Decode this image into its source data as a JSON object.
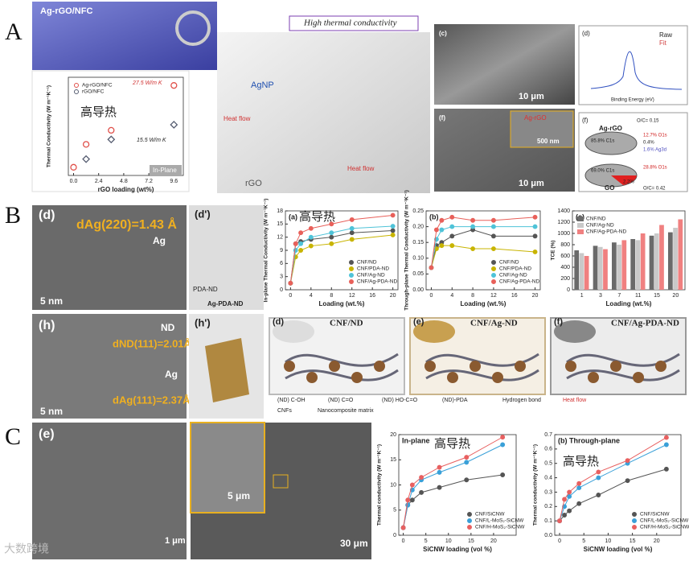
{
  "figure": {
    "panel_labels": [
      "A",
      "B",
      "C"
    ],
    "a": {
      "banner": "Ag-rGO/NFC",
      "high": "High thermal conductivity",
      "agnp": "AgNP",
      "heat1": "Heat flow",
      "heat2": "Heat flow",
      "rgo": "rGO",
      "sem_c": "(c)",
      "sem_c_scale": "10 μm",
      "xps": "(d)",
      "xps_raw": "Raw",
      "xps_fit": "Fit",
      "xps_x": "Binding Energy (eV)",
      "sem_f": "(f)",
      "sem_f_inset": "Ag-rGO",
      "sem_f_inset_scale": "500 nm",
      "sem_f_scale": "10 μm",
      "pie": {
        "label": "(f)",
        "top": "Ag-rGO",
        "top_c": "85.8% C1s",
        "top_o": "12.7% O1s",
        "top_x": "0.4%",
        "top_ag": "1.6% Ag3d",
        "top_ratio": "O/C= 0.15",
        "bottom": "GO",
        "bottom_c": "69.0% C1s",
        "bottom_o": "28.8% O1s",
        "bottom_x": "2.2%",
        "bottom_ratio": "O/C= 0.42"
      }
    },
    "b": {
      "d": "(d)",
      "d_spacing": "dAg(220)=1.43 Å",
      "d_ag": "Ag",
      "d_scale": "5 nm",
      "dp": "(d')",
      "dp_pda": "PDA-ND",
      "dp_name": "Ag-PDA-ND",
      "h": "(h)",
      "h_nd": "ND",
      "h_spacing1": "dND(111)=2.01Å",
      "h_ag": "Ag",
      "h_spacing2": "dAg(111)=2.37Å",
      "h_scale": "5 nm",
      "hp": "(h')",
      "schemes": [
        {
          "label": "(d)",
          "name": "CNF/ND"
        },
        {
          "label": "(e)",
          "name": "CNF/Ag-ND"
        },
        {
          "label": "(f)",
          "name": "CNF/Ag-PDA-ND"
        }
      ],
      "legend": [
        "(ND) C-OH",
        "(ND) C=O",
        "(ND) HO-C=O",
        "(ND)-PDA",
        "Hydrogen bond",
        "Heat flow",
        "CNFs",
        "Nanocomposite matrix"
      ]
    },
    "c": {
      "e": "(e)",
      "e_scale": "1 μm",
      "inset_scale": "5 μm",
      "scale": "30 μm",
      "watermark": "大数跨境"
    }
  },
  "chart_data": [
    {
      "type": "scatter",
      "x_label": "rGO loading (wt%)",
      "y_label": "Thermal Conductivity (W m⁻¹K⁻¹)",
      "x": [
        0,
        1.2,
        3.6,
        9.6
      ],
      "xlim": [
        -0.5,
        10.5
      ],
      "xticks": [
        {
          "value": 0,
          "label": "0.0"
        },
        2.4,
        4.8,
        7.2,
        9.6
      ],
      "ylim": [
        0,
        30
      ],
      "yticks": [],
      "legend": "upper left",
      "series": [
        {
          "name": "Ag-rGO/NFC",
          "color": "#e0504a",
          "marker": "circle",
          "values": [
            2.5,
            9.5,
            13.8,
            27.5
          ]
        },
        {
          "name": "rGO/NFC",
          "color": "#555c70",
          "marker": "diamond",
          "values": [
            null,
            5,
            11,
            15.5
          ]
        }
      ],
      "annotations": [
        "高导热",
        "27.5 W/m K",
        "15.5 W/m K",
        "In-Plane"
      ]
    },
    {
      "type": "line",
      "title": "(a)",
      "x_label": "Loading (wt.%)",
      "y_label": "In-plane Thermal Conductivity (W m⁻¹K⁻¹)",
      "x": [
        0,
        1,
        2,
        4,
        8,
        12,
        20
      ],
      "xlim": [
        -1,
        21
      ],
      "xticks": [
        0,
        4,
        8,
        12,
        16,
        20
      ],
      "ylim": [
        0,
        18
      ],
      "yticks": [
        0,
        3,
        6,
        9,
        12,
        15,
        18
      ],
      "legend": "lower right",
      "series": [
        {
          "name": "CNF/ND",
          "color": "#555555",
          "values": [
            1.5,
            10.5,
            11,
            11.5,
            12,
            13,
            13.5
          ]
        },
        {
          "name": "CNF/PDA-ND",
          "color": "#c8b400",
          "values": [
            1.5,
            7.5,
            9,
            10,
            10.5,
            11.5,
            12.5
          ]
        },
        {
          "name": "CNF/Ag-ND",
          "color": "#4fc3d8",
          "values": [
            1.5,
            9,
            10.5,
            12,
            13,
            14,
            14.5
          ]
        },
        {
          "name": "CNF/Ag-PDA-ND",
          "color": "#e8605a",
          "values": [
            1.5,
            10.5,
            13,
            14,
            15,
            16,
            17
          ]
        }
      ],
      "annotations": [
        "高导热"
      ]
    },
    {
      "type": "line",
      "title": "(b)",
      "x_label": "Loading (wt.%)",
      "y_label": "Through-plane Thermal Conductivity (W m⁻¹K⁻¹)",
      "x": [
        0,
        1,
        2,
        4,
        8,
        12,
        20
      ],
      "xlim": [
        -1,
        21
      ],
      "xticks": [
        0,
        4,
        8,
        12,
        16,
        20
      ],
      "ylim": [
        0,
        0.25
      ],
      "yticks": [
        {
          "value": 0,
          "label": "0.00"
        },
        0.05,
        {
          "value": 0.1,
          "label": "0.10"
        },
        0.15,
        {
          "value": 0.2,
          "label": "0.20"
        },
        0.25
      ],
      "legend": "lower right",
      "series": [
        {
          "name": "CNF/ND",
          "color": "#555555",
          "values": [
            0.07,
            0.14,
            0.15,
            0.17,
            0.19,
            0.17,
            0.17
          ]
        },
        {
          "name": "CNF/PDA-ND",
          "color": "#c8b400",
          "values": [
            0.07,
            0.13,
            0.14,
            0.14,
            0.13,
            0.13,
            0.12
          ]
        },
        {
          "name": "CNF/Ag-ND",
          "color": "#4fc3d8",
          "values": [
            0.07,
            0.16,
            0.19,
            0.2,
            0.2,
            0.2,
            0.2
          ]
        },
        {
          "name": "CNF/Ag-PDA-ND",
          "color": "#e8605a",
          "values": [
            0.07,
            0.19,
            0.22,
            0.23,
            0.22,
            0.22,
            0.23
          ]
        }
      ]
    },
    {
      "type": "bar",
      "title": "(c)",
      "x_label": "Loading (wt.%)",
      "y_label": "TCE (%)",
      "categories": [
        "1",
        "3",
        "7",
        "11",
        "15",
        "20"
      ],
      "ylim": [
        0,
        1400
      ],
      "yticks": [
        0,
        200,
        400,
        600,
        800,
        1000,
        1200,
        1400
      ],
      "legend": "upper left",
      "series": [
        {
          "name": "CNF/ND",
          "color": "#6a6a6a",
          "values": [
            700,
            780,
            840,
            900,
            960,
            1020
          ]
        },
        {
          "name": "CNF/Ag-ND",
          "color": "#c9c9c9",
          "values": [
            650,
            760,
            800,
            880,
            1000,
            1100
          ]
        },
        {
          "name": "CNF/Ag-PDA-ND",
          "color": "#f08080",
          "values": [
            600,
            720,
            880,
            1000,
            1150,
            1250
          ]
        }
      ]
    },
    {
      "type": "line",
      "title": "In-plane",
      "x_label": "SiCNW loading (vol %)",
      "y_label": "Thermal conductivity (W m⁻¹K⁻¹)",
      "x": [
        0,
        1,
        2,
        4,
        8,
        14,
        22
      ],
      "xlim": [
        -1,
        25
      ],
      "xticks": [
        0,
        5,
        10,
        15,
        20
      ],
      "ylim": [
        0,
        20
      ],
      "yticks": [
        0,
        5,
        10,
        15,
        20
      ],
      "legend": "lower right",
      "series": [
        {
          "name": "CNF/SiCNW",
          "color": "#555555",
          "values": [
            1.5,
            6,
            7,
            8.5,
            9.5,
            11,
            12
          ]
        },
        {
          "name": "CNF/L-MoS₂-SiCNW",
          "color": "#3aa0d8",
          "values": [
            1.5,
            6,
            9,
            11,
            12.5,
            14.5,
            18
          ]
        },
        {
          "name": "CNF/H-MoS₂-SiCNW",
          "color": "#e86060",
          "values": [
            1.5,
            7,
            10,
            11.5,
            13.5,
            15.5,
            19.5
          ]
        }
      ],
      "annotations": [
        "高导热"
      ]
    },
    {
      "type": "line",
      "title": "(b) Through-plane",
      "x_label": "SiCNW loading (vol %)",
      "y_label": "Thermal conductivity (W m⁻¹K⁻¹)",
      "x": [
        0,
        1,
        2,
        4,
        8,
        14,
        22
      ],
      "xlim": [
        -1,
        25
      ],
      "xticks": [
        0,
        5,
        10,
        15,
        20
      ],
      "ylim": [
        0,
        0.7
      ],
      "yticks": [
        {
          "value": 0,
          "label": "0.0"
        },
        0.1,
        0.2,
        0.3,
        0.4,
        0.5,
        0.6,
        0.7
      ],
      "legend": "lower right",
      "series": [
        {
          "name": "CNF/SiCNW",
          "color": "#555555",
          "values": [
            0.1,
            0.14,
            0.17,
            0.22,
            0.28,
            0.38,
            0.46
          ]
        },
        {
          "name": "CNF/L-MoS₂-SiCNW",
          "color": "#3aa0d8",
          "values": [
            0.1,
            0.2,
            0.27,
            0.33,
            0.4,
            0.5,
            0.63
          ]
        },
        {
          "name": "CNF/H-MoS₂-SiCNW",
          "color": "#e86060",
          "values": [
            0.1,
            0.25,
            0.3,
            0.36,
            0.44,
            0.52,
            0.68
          ]
        }
      ],
      "annotations": [
        "高导热"
      ]
    }
  ]
}
